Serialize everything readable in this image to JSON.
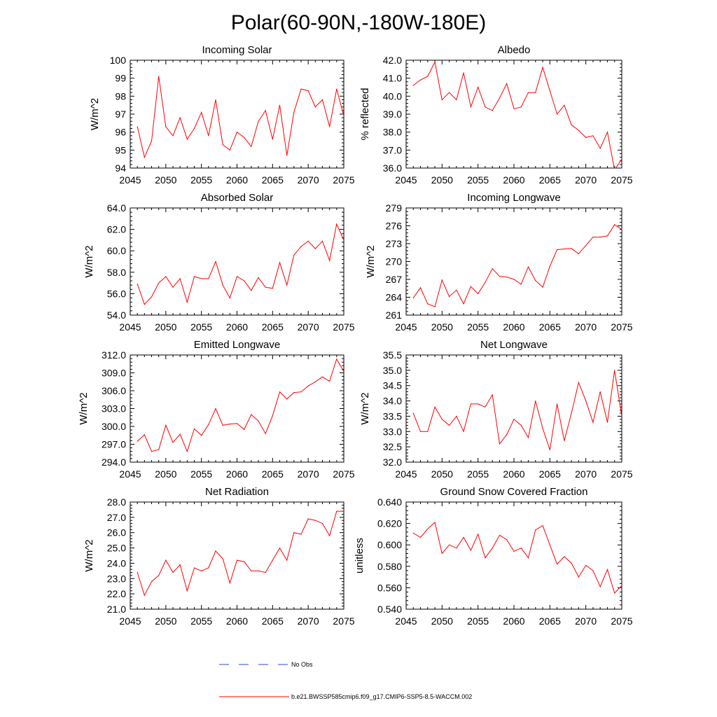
{
  "page": {
    "title": "Polar(60-90N,-180W-180E)"
  },
  "legend": {
    "items": [
      {
        "label": "No Obs",
        "color": "#3344cc",
        "dash": true
      },
      {
        "label": "b.e21.BWSSP585cmip6.f09_g17.CMIP6-SSP5-8.5-WACCM.002",
        "color": "#ff0000",
        "dash": false
      }
    ]
  },
  "chart_data": [
    {
      "type": "line",
      "title": "Incoming Solar",
      "ylabel": "W/m^2",
      "xlim": [
        2045,
        2075
      ],
      "ylim": [
        94,
        100
      ],
      "xticks": [
        2045,
        2050,
        2055,
        2060,
        2065,
        2070,
        2075
      ],
      "yticks": [
        "94",
        "95",
        "96",
        "97",
        "98",
        "99",
        "100"
      ],
      "color": "#ff0000",
      "x": [
        2046,
        2047,
        2048,
        2049,
        2050,
        2051,
        2052,
        2053,
        2054,
        2055,
        2056,
        2057,
        2058,
        2059,
        2060,
        2061,
        2062,
        2063,
        2064,
        2065,
        2066,
        2067,
        2068,
        2069,
        2070,
        2071,
        2072,
        2073,
        2074,
        2075
      ],
      "y": [
        96.3,
        94.6,
        95.5,
        99.1,
        96.3,
        95.8,
        96.8,
        95.6,
        96.2,
        97.1,
        95.8,
        97.8,
        95.3,
        95.0,
        96.0,
        95.7,
        95.2,
        96.6,
        97.2,
        95.6,
        97.5,
        94.7,
        97.1,
        98.4,
        98.3,
        97.4,
        97.8,
        96.3,
        98.4,
        96.9
      ]
    },
    {
      "type": "line",
      "title": "Albedo",
      "ylabel": "% reflected",
      "xlim": [
        2045,
        2075
      ],
      "ylim": [
        36,
        42
      ],
      "xticks": [
        2045,
        2050,
        2055,
        2060,
        2065,
        2070,
        2075
      ],
      "yticks": [
        "36.0",
        "37.0",
        "38.0",
        "39.0",
        "40.0",
        "41.0",
        "42.0"
      ],
      "color": "#ff0000",
      "x": [
        2046,
        2047,
        2048,
        2049,
        2050,
        2051,
        2052,
        2053,
        2054,
        2055,
        2056,
        2057,
        2058,
        2059,
        2060,
        2061,
        2062,
        2063,
        2064,
        2065,
        2066,
        2067,
        2068,
        2069,
        2070,
        2071,
        2072,
        2073,
        2074,
        2075
      ],
      "y": [
        40.6,
        40.9,
        41.1,
        41.9,
        39.8,
        40.2,
        39.8,
        41.3,
        39.4,
        40.5,
        39.4,
        39.2,
        39.9,
        40.7,
        39.3,
        39.4,
        40.2,
        40.2,
        41.6,
        40.3,
        39.0,
        39.5,
        38.4,
        38.1,
        37.7,
        37.8,
        37.1,
        38.0,
        35.9,
        36.5
      ]
    },
    {
      "type": "line",
      "title": "Absorbed Solar",
      "ylabel": "W/m^2",
      "xlim": [
        2045,
        2075
      ],
      "ylim": [
        54,
        64
      ],
      "xticks": [
        2045,
        2050,
        2055,
        2060,
        2065,
        2070,
        2075
      ],
      "yticks": [
        "54.0",
        "56.0",
        "58.0",
        "60.0",
        "62.0",
        "64.0"
      ],
      "color": "#ff0000",
      "x": [
        2046,
        2047,
        2048,
        2049,
        2050,
        2051,
        2052,
        2053,
        2054,
        2055,
        2056,
        2057,
        2058,
        2059,
        2060,
        2061,
        2062,
        2063,
        2064,
        2065,
        2066,
        2067,
        2068,
        2069,
        2070,
        2071,
        2072,
        2073,
        2074,
        2075
      ],
      "y": [
        56.9,
        55.0,
        55.7,
        57.0,
        57.6,
        56.6,
        57.4,
        55.2,
        57.6,
        57.4,
        57.4,
        59.0,
        56.8,
        55.6,
        57.6,
        57.2,
        56.3,
        57.5,
        56.6,
        56.5,
        58.9,
        56.8,
        59.6,
        60.4,
        60.9,
        60.2,
        60.9,
        59.1,
        62.5,
        61.0
      ]
    },
    {
      "type": "line",
      "title": "Incoming Longwave",
      "ylabel": "W/m^2",
      "xlim": [
        2045,
        2075
      ],
      "ylim": [
        261,
        279
      ],
      "xticks": [
        2045,
        2050,
        2055,
        2060,
        2065,
        2070,
        2075
      ],
      "yticks": [
        "261",
        "264",
        "267",
        "270",
        "273",
        "276",
        "279"
      ],
      "color": "#ff0000",
      "x": [
        2046,
        2047,
        2048,
        2049,
        2050,
        2051,
        2052,
        2053,
        2054,
        2055,
        2056,
        2057,
        2058,
        2059,
        2060,
        2061,
        2062,
        2063,
        2064,
        2065,
        2066,
        2067,
        2068,
        2069,
        2070,
        2071,
        2072,
        2073,
        2074,
        2075
      ],
      "y": [
        263.9,
        265.6,
        262.9,
        262.4,
        266.9,
        264.1,
        265.2,
        262.9,
        265.8,
        264.6,
        266.5,
        268.8,
        267.5,
        267.4,
        267.0,
        266.2,
        269.1,
        266.8,
        265.7,
        269.2,
        272.0,
        272.1,
        272.2,
        271.3,
        272.7,
        274.1,
        274.1,
        274.3,
        276.2,
        275.4
      ]
    },
    {
      "type": "line",
      "title": "Emitted Longwave",
      "ylabel": "W/m^2",
      "xlim": [
        2045,
        2075
      ],
      "ylim": [
        294,
        312
      ],
      "xticks": [
        2045,
        2050,
        2055,
        2060,
        2065,
        2070,
        2075
      ],
      "yticks": [
        "294.0",
        "297.0",
        "300.0",
        "303.0",
        "306.0",
        "309.0",
        "312.0"
      ],
      "color": "#ff0000",
      "x": [
        2046,
        2047,
        2048,
        2049,
        2050,
        2051,
        2052,
        2053,
        2054,
        2055,
        2056,
        2057,
        2058,
        2059,
        2060,
        2061,
        2062,
        2063,
        2064,
        2065,
        2066,
        2067,
        2068,
        2069,
        2070,
        2071,
        2072,
        2073,
        2074,
        2075
      ],
      "y": [
        297.5,
        298.6,
        295.8,
        296.1,
        300.2,
        297.3,
        298.7,
        295.8,
        299.6,
        298.5,
        300.3,
        303.0,
        300.2,
        300.4,
        300.5,
        299.5,
        302.0,
        300.9,
        298.8,
        301.8,
        305.8,
        304.6,
        305.7,
        305.8,
        306.8,
        307.5,
        308.3,
        307.6,
        311.3,
        309.2
      ]
    },
    {
      "type": "line",
      "title": "Net Longwave",
      "ylabel": "W/m^2",
      "xlim": [
        2045,
        2075
      ],
      "ylim": [
        32,
        35.5
      ],
      "xticks": [
        2045,
        2050,
        2055,
        2060,
        2065,
        2070,
        2075
      ],
      "yticks": [
        "32.0",
        "32.5",
        "33.0",
        "33.5",
        "34.0",
        "34.5",
        "35.0",
        "35.5"
      ],
      "color": "#ff0000",
      "x": [
        2046,
        2047,
        2048,
        2049,
        2050,
        2051,
        2052,
        2053,
        2054,
        2055,
        2056,
        2057,
        2058,
        2059,
        2060,
        2061,
        2062,
        2063,
        2064,
        2065,
        2066,
        2067,
        2068,
        2069,
        2070,
        2071,
        2072,
        2073,
        2074,
        2075
      ],
      "y": [
        33.6,
        33.0,
        33.0,
        33.8,
        33.4,
        33.2,
        33.5,
        33.0,
        33.9,
        33.9,
        33.8,
        34.2,
        32.6,
        32.9,
        33.4,
        33.2,
        32.8,
        34.0,
        33.1,
        32.4,
        33.9,
        32.7,
        33.6,
        34.6,
        34.0,
        33.3,
        34.3,
        33.3,
        35.0,
        33.5
      ]
    },
    {
      "type": "line",
      "title": "Net Radiation",
      "ylabel": "W/m^2",
      "xlim": [
        2045,
        2075
      ],
      "ylim": [
        21,
        28
      ],
      "xticks": [
        2045,
        2050,
        2055,
        2060,
        2065,
        2070,
        2075
      ],
      "yticks": [
        "21.0",
        "22.0",
        "23.0",
        "24.0",
        "25.0",
        "26.0",
        "27.0",
        "28.0"
      ],
      "color": "#ff0000",
      "x": [
        2046,
        2047,
        2048,
        2049,
        2050,
        2051,
        2052,
        2053,
        2054,
        2055,
        2056,
        2057,
        2058,
        2059,
        2060,
        2061,
        2062,
        2063,
        2064,
        2065,
        2066,
        2067,
        2068,
        2069,
        2070,
        2071,
        2072,
        2073,
        2074,
        2075
      ],
      "y": [
        23.4,
        21.9,
        22.8,
        23.2,
        24.2,
        23.4,
        23.9,
        22.2,
        23.7,
        23.5,
        23.7,
        24.8,
        24.3,
        22.7,
        24.2,
        24.1,
        23.5,
        23.5,
        23.4,
        24.2,
        25.0,
        24.2,
        26.0,
        25.9,
        26.9,
        26.8,
        26.6,
        25.8,
        27.4,
        27.4
      ]
    },
    {
      "type": "line",
      "title": "Ground Snow Covered Fraction",
      "ylabel": "unitless",
      "xlim": [
        2045,
        2075
      ],
      "ylim": [
        0.54,
        0.64
      ],
      "xticks": [
        2045,
        2050,
        2055,
        2060,
        2065,
        2070,
        2075
      ],
      "yticks": [
        "0.540",
        "0.560",
        "0.580",
        "0.600",
        "0.620",
        "0.640"
      ],
      "color": "#ff0000",
      "x": [
        2046,
        2047,
        2048,
        2049,
        2050,
        2051,
        2052,
        2053,
        2054,
        2055,
        2056,
        2057,
        2058,
        2059,
        2060,
        2061,
        2062,
        2063,
        2064,
        2065,
        2066,
        2067,
        2068,
        2069,
        2070,
        2071,
        2072,
        2073,
        2074,
        2075
      ],
      "y": [
        0.611,
        0.607,
        0.615,
        0.621,
        0.592,
        0.6,
        0.597,
        0.607,
        0.595,
        0.61,
        0.588,
        0.597,
        0.609,
        0.605,
        0.594,
        0.597,
        0.588,
        0.614,
        0.618,
        0.6,
        0.582,
        0.589,
        0.583,
        0.57,
        0.581,
        0.576,
        0.561,
        0.577,
        0.555,
        0.562
      ]
    }
  ]
}
